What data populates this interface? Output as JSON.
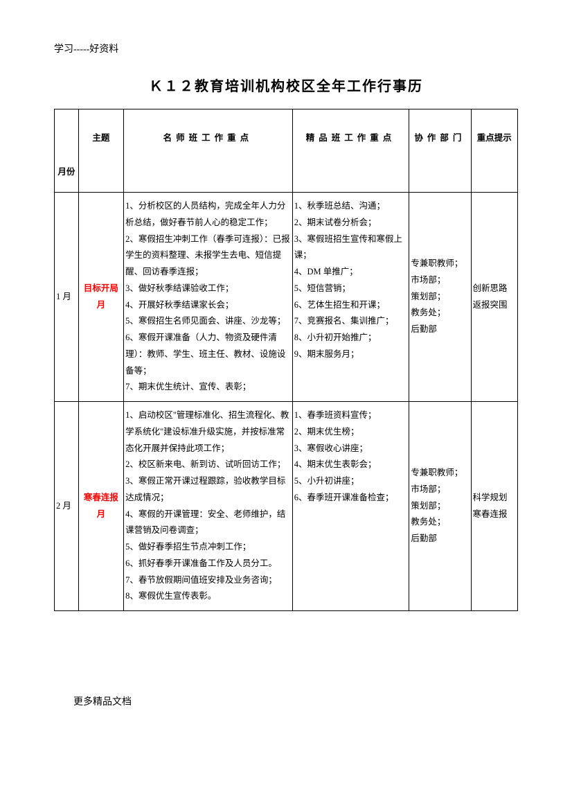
{
  "header_small": "学习-----好资料",
  "title": "Ｋ１２教育培训机构校区全年工作行事历",
  "footer": "更多精品文档",
  "columns": {
    "month": "月份",
    "theme": "主题",
    "mingshi": "名师班工作重点",
    "jingpin": "精品班工作重点",
    "xiezuo": "协作部门",
    "zhongdian": "重点提示"
  },
  "rows": [
    {
      "month": "1 月",
      "theme": "目标开局月",
      "mingshi": "1、分析校区的人员结构，完成全年人力分析总结，做好春节前人心的稳定工作；\n2、寒假招生冲刺工作（春季可连报）：已报学生的资料整理、未报学生去电、短信提醒、回访春季连报；\n3、做好秋季结课验收工作；\n4、开展好秋季结课家长会；\n5、寒假招生名师见面会、讲座、沙龙等；\n6、寒假开课准备（人力、物资及硬件清理）：教师、学生、班主任、教材、设施设备等；\n7、期末优生统计、宣传、表彰；",
      "jingpin": "1、秋季班总结、沟通；\n2、期末试卷分析会；\n3、寒假班招生宣传和寒假上课；\n4、DM 单推广；\n5、短信营销；\n6、艺体生招生和开课；\n7、竞赛报名、集训推广；\n8、小升初开始推广；\n9、期末服务月；",
      "xiezuo": "专兼职教师；\n市场部；\n策划部；\n教务处；\n后勤部",
      "zhongdian": "创新思路\n返报突围"
    },
    {
      "month": "2 月",
      "theme": "寒春连报月",
      "mingshi": "1、启动校区\"管理标准化、招生流程化、教学系统化\"建设标准升级实施，并按标准常态化开展并保持此项工作；\n2、校区新来电、新到访、试听回访工作；\n3、寒假正常开课过程跟踪，验收教学目标达成情况；\n4、寒假的开课管理：安全、老师维护，结课营销及问卷调查；\n5、做好春季招生节点冲刺工作；\n6、抓好春季开课准备工作及人员分工。\n7、春节放假期间值班安排及业务咨询；\n8、寒假优生宣传表彰。",
      "jingpin": "1、春季班资料宣传；\n2、期末优生榜；\n3、寒假收心讲座；\n4、期末优生表彰会；\n5、小升初讲座；\n6、春季班开课准备检查；",
      "xiezuo": "专兼职教师；\n市场部；\n策划部；\n教务处；\n后勤部",
      "zhongdian": "科学规划\n寒春连报"
    }
  ]
}
